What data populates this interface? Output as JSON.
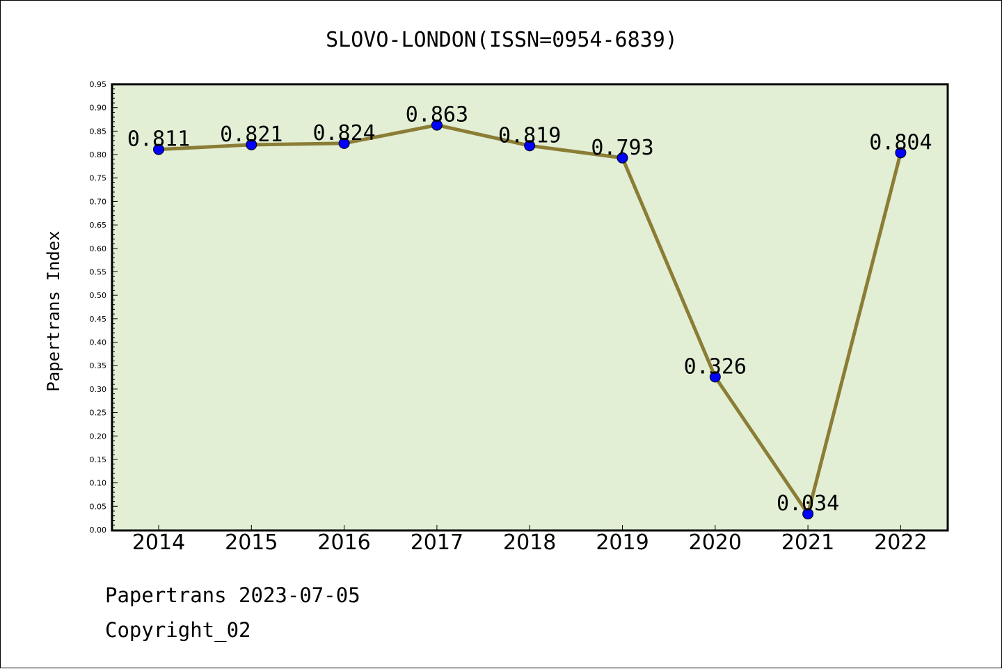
{
  "chart_data": {
    "type": "line",
    "title": "SLOVO-LONDON(ISSN=0954-6839)",
    "ylabel": "Papertrans Index",
    "xlabel": "",
    "categories": [
      "2014",
      "2015",
      "2016",
      "2017",
      "2018",
      "2019",
      "2020",
      "2021",
      "2022"
    ],
    "values": [
      0.811,
      0.821,
      0.824,
      0.863,
      0.819,
      0.793,
      0.326,
      0.034,
      0.804
    ],
    "data_labels": [
      "0.811",
      "0.821",
      "0.824",
      "0.863",
      "0.819",
      "0.793",
      "0.326",
      "0.034",
      "0.804"
    ],
    "ylim": [
      0,
      0.95
    ],
    "yticks": [
      "0.00",
      "0.05",
      "0.10",
      "0.15",
      "0.20",
      "0.25",
      "0.30",
      "0.35",
      "0.40",
      "0.45",
      "0.50",
      "0.55",
      "0.60",
      "0.65",
      "0.70",
      "0.75",
      "0.80",
      "0.85",
      "0.90",
      "0.95"
    ],
    "grid": false,
    "colors": {
      "plot_background": "#e2efd5",
      "line": "#8b7d35",
      "marker": "#0000ff"
    }
  },
  "footer": {
    "line1": "Papertrans 2023-07-05",
    "line2": "Copyright_02"
  }
}
